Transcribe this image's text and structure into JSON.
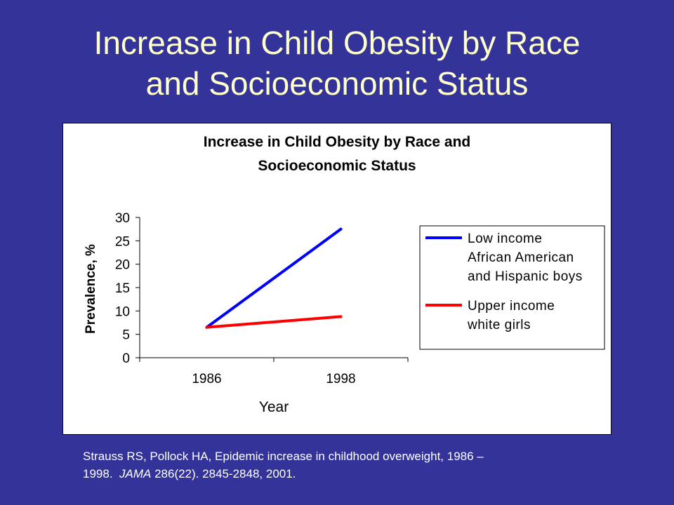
{
  "slide": {
    "title_line1": "Increase in Child Obesity by Race",
    "title_line2": "and Socioeconomic Status",
    "citation_line1": "Strauss RS, Pollock HA, Epidemic increase in childhood overweight, 1986 –",
    "citation_line2_pre": "1998.",
    "citation_journal": "JAMA",
    "citation_line2_post": "286(22).  2845-2848, 2001."
  },
  "colors": {
    "background": "#333399",
    "title": "#FFFFCC",
    "series_low_income": "#0000FF",
    "series_upper_income": "#FF0000"
  },
  "chart_data": {
    "type": "line",
    "title_line1": "Increase in Child Obesity by Race and",
    "title_line2": "Socioeconomic Status",
    "xlabel": "Year",
    "ylabel": "Prevalence, %",
    "categories": [
      "1986",
      "1998"
    ],
    "ylim": [
      0,
      30
    ],
    "yticks": [
      0,
      5,
      10,
      15,
      20,
      25,
      30
    ],
    "grid": false,
    "legend_position": "right",
    "series": [
      {
        "name": "Low income African American and Hispanic boys",
        "legend_lines": [
          "Low income",
          "African American",
          "and Hispanic boys"
        ],
        "values": [
          6.5,
          27.5
        ],
        "color": "#0000FF"
      },
      {
        "name": "Upper income white girls",
        "legend_lines": [
          "Upper income",
          "white girls"
        ],
        "values": [
          6.5,
          8.8
        ],
        "color": "#FF0000"
      }
    ]
  }
}
